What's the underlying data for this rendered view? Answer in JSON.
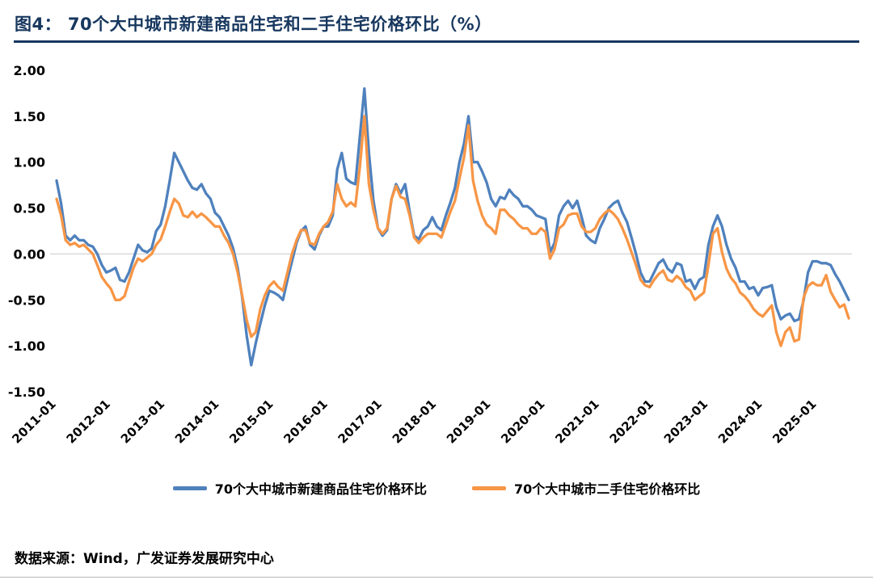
{
  "title": "图4：  70个大中城市新建商品住宅和二手住宅价格环比（%）",
  "footer": {
    "source": "数据来源：Wind，广发证券发展研究中心"
  },
  "colors": {
    "title_bar": "#17375E",
    "zero_line": "#d9d9d9"
  },
  "chart_data": {
    "type": "line",
    "title": "70个大中城市新建商品住宅和二手住宅价格环比（%）",
    "x_unit": "month",
    "x_tick_labels": [
      "2011-01",
      "2012-01",
      "2013-01",
      "2014-01",
      "2015-01",
      "2016-01",
      "2017-01",
      "2018-01",
      "2019-01",
      "2020-01",
      "2021-01",
      "2022-01",
      "2023-01",
      "2024-01",
      "2025-01"
    ],
    "x_tick_every": 12,
    "ylim": [
      -1.5,
      2.0
    ],
    "yticks": [
      2.0,
      1.5,
      1.0,
      0.5,
      0.0,
      -0.5,
      -1.0,
      -1.5
    ],
    "grid": "zero-line-only",
    "legend_position": "bottom",
    "series": [
      {
        "name": "70个大中城市新建商品住宅价格环比",
        "color": "#4F81BD",
        "values": [
          0.8,
          0.55,
          0.2,
          0.15,
          0.2,
          0.15,
          0.15,
          0.1,
          0.08,
          0.0,
          -0.12,
          -0.2,
          -0.18,
          -0.15,
          -0.28,
          -0.3,
          -0.2,
          -0.05,
          0.1,
          0.04,
          0.02,
          0.06,
          0.25,
          0.32,
          0.52,
          0.8,
          1.1,
          1.0,
          0.9,
          0.8,
          0.72,
          0.7,
          0.76,
          0.66,
          0.6,
          0.45,
          0.4,
          0.3,
          0.2,
          0.06,
          -0.15,
          -0.47,
          -0.89,
          -1.21,
          -0.97,
          -0.76,
          -0.56,
          -0.4,
          -0.42,
          -0.45,
          -0.5,
          -0.28,
          -0.08,
          0.12,
          0.25,
          0.3,
          0.1,
          0.05,
          0.2,
          0.3,
          0.3,
          0.42,
          0.92,
          1.1,
          0.82,
          0.78,
          0.76,
          1.28,
          1.8,
          1.1,
          0.58,
          0.28,
          0.2,
          0.26,
          0.6,
          0.76,
          0.66,
          0.76,
          0.46,
          0.2,
          0.16,
          0.26,
          0.3,
          0.4,
          0.3,
          0.26,
          0.42,
          0.56,
          0.72,
          1.0,
          1.2,
          1.5,
          1.0,
          1.0,
          0.9,
          0.78,
          0.6,
          0.52,
          0.62,
          0.6,
          0.7,
          0.64,
          0.6,
          0.52,
          0.52,
          0.48,
          0.42,
          0.4,
          0.38,
          0.02,
          0.12,
          0.42,
          0.52,
          0.58,
          0.5,
          0.58,
          0.4,
          0.2,
          0.15,
          0.12,
          0.28,
          0.38,
          0.5,
          0.55,
          0.58,
          0.45,
          0.35,
          0.18,
          0.0,
          -0.2,
          -0.3,
          -0.3,
          -0.2,
          -0.1,
          -0.06,
          -0.16,
          -0.2,
          -0.1,
          -0.12,
          -0.3,
          -0.28,
          -0.38,
          -0.28,
          -0.25,
          0.1,
          0.3,
          0.42,
          0.3,
          0.1,
          -0.05,
          -0.15,
          -0.3,
          -0.3,
          -0.38,
          -0.36,
          -0.45,
          -0.37,
          -0.36,
          -0.34,
          -0.58,
          -0.71,
          -0.67,
          -0.65,
          -0.73,
          -0.71,
          -0.51,
          -0.2,
          -0.08,
          -0.08,
          -0.1,
          -0.1,
          -0.12,
          -0.22,
          -0.3,
          -0.4,
          -0.5
        ]
      },
      {
        "name": "70个大中城市二手住宅价格环比",
        "color": "#F79646",
        "values": [
          0.6,
          0.42,
          0.15,
          0.1,
          0.12,
          0.08,
          0.1,
          0.05,
          0.0,
          -0.12,
          -0.25,
          -0.32,
          -0.38,
          -0.5,
          -0.5,
          -0.46,
          -0.3,
          -0.15,
          -0.05,
          -0.08,
          -0.04,
          0.0,
          0.1,
          0.16,
          0.3,
          0.46,
          0.6,
          0.55,
          0.42,
          0.4,
          0.46,
          0.4,
          0.44,
          0.4,
          0.35,
          0.3,
          0.3,
          0.2,
          0.12,
          0.0,
          -0.2,
          -0.45,
          -0.72,
          -0.9,
          -0.85,
          -0.6,
          -0.45,
          -0.35,
          -0.3,
          -0.36,
          -0.4,
          -0.2,
          0.0,
          0.15,
          0.26,
          0.26,
          0.12,
          0.1,
          0.22,
          0.3,
          0.35,
          0.46,
          0.76,
          0.6,
          0.52,
          0.56,
          0.52,
          0.95,
          1.5,
          0.76,
          0.48,
          0.28,
          0.22,
          0.28,
          0.6,
          0.74,
          0.62,
          0.6,
          0.42,
          0.18,
          0.12,
          0.18,
          0.22,
          0.22,
          0.22,
          0.18,
          0.32,
          0.46,
          0.58,
          0.82,
          1.05,
          1.4,
          0.8,
          0.58,
          0.42,
          0.32,
          0.28,
          0.22,
          0.48,
          0.48,
          0.42,
          0.38,
          0.32,
          0.28,
          0.28,
          0.22,
          0.22,
          0.28,
          0.24,
          -0.05,
          0.05,
          0.28,
          0.32,
          0.42,
          0.44,
          0.44,
          0.3,
          0.24,
          0.24,
          0.28,
          0.38,
          0.44,
          0.48,
          0.44,
          0.38,
          0.28,
          0.16,
          0.02,
          -0.12,
          -0.28,
          -0.34,
          -0.36,
          -0.28,
          -0.22,
          -0.18,
          -0.28,
          -0.3,
          -0.24,
          -0.28,
          -0.36,
          -0.4,
          -0.5,
          -0.46,
          -0.42,
          -0.12,
          0.22,
          0.28,
          0.02,
          -0.16,
          -0.26,
          -0.32,
          -0.42,
          -0.46,
          -0.52,
          -0.6,
          -0.65,
          -0.68,
          -0.62,
          -0.56,
          -0.85,
          -1.0,
          -0.85,
          -0.8,
          -0.95,
          -0.93,
          -0.48,
          -0.35,
          -0.31,
          -0.34,
          -0.34,
          -0.23,
          -0.41,
          -0.5,
          -0.58,
          -0.55,
          -0.7
        ]
      }
    ]
  }
}
